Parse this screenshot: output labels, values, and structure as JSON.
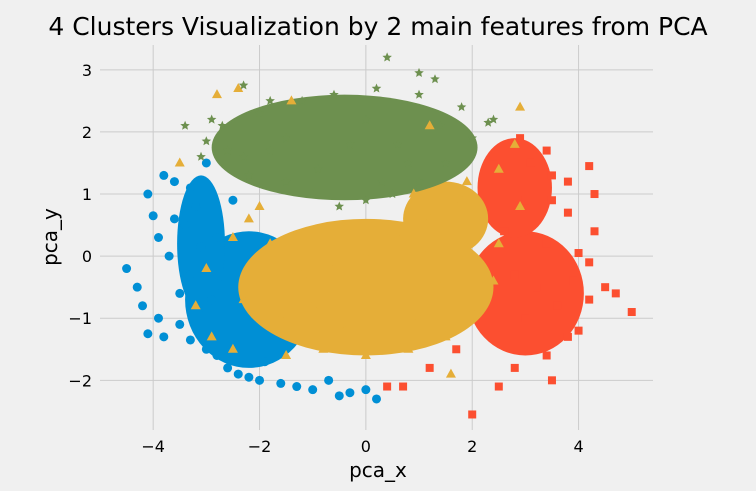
{
  "chart_data": {
    "type": "scatter",
    "title": "4 Clusters Visualization by 2 main features from PCA",
    "xlabel": "pca_x",
    "ylabel": "pca_y",
    "xlim": [
      -5,
      5.4
    ],
    "ylim": [
      -2.8,
      3.4
    ],
    "xticks": [
      -4,
      -2,
      0,
      2,
      4
    ],
    "yticks": [
      -2,
      -1,
      0,
      1,
      2,
      3
    ],
    "grid": true,
    "background": "#f0f0f0",
    "series": [
      {
        "color": "#008fd5",
        "marker": "circle",
        "points": [
          [
            -4.5,
            -0.2
          ],
          [
            -4.3,
            -0.5
          ],
          [
            -4.2,
            -0.8
          ],
          [
            -4.1,
            -1.25
          ],
          [
            -3.9,
            -1.0
          ],
          [
            -4.1,
            1.0
          ],
          [
            -4.0,
            0.65
          ],
          [
            -3.8,
            1.3
          ],
          [
            -3.6,
            0.6
          ],
          [
            -3.6,
            1.2
          ],
          [
            -3.5,
            -1.1
          ],
          [
            -3.4,
            0.5
          ],
          [
            -3.3,
            -0.3
          ],
          [
            -3.3,
            -1.35
          ],
          [
            -3.2,
            0.8
          ],
          [
            -3.1,
            0.15
          ],
          [
            -3.0,
            -1.5
          ],
          [
            -3.0,
            1.5
          ],
          [
            -2.9,
            -0.7
          ],
          [
            -2.8,
            0.3
          ],
          [
            -2.8,
            -1.6
          ],
          [
            -2.6,
            -1.8
          ],
          [
            -2.5,
            0.9
          ],
          [
            -2.4,
            -1.9
          ],
          [
            -2.2,
            -1.95
          ],
          [
            -2.0,
            -2.0
          ],
          [
            -1.9,
            -1.7
          ],
          [
            -1.6,
            -2.05
          ],
          [
            -1.3,
            -2.1
          ],
          [
            -1.0,
            -2.15
          ],
          [
            -0.7,
            -2.0
          ],
          [
            -0.5,
            -2.25
          ],
          [
            -0.3,
            -2.2
          ],
          [
            0.0,
            -2.15
          ],
          [
            0.2,
            -2.3
          ],
          [
            -3.8,
            -1.3
          ],
          [
            -3.7,
            0.0
          ],
          [
            -3.9,
            0.3
          ],
          [
            -3.5,
            -0.6
          ],
          [
            -3.3,
            1.1
          ]
        ]
      },
      {
        "color": "#fc4f30",
        "marker": "square",
        "points": [
          [
            2.0,
            -2.55
          ],
          [
            2.5,
            -2.1
          ],
          [
            2.8,
            -1.8
          ],
          [
            3.4,
            -1.6
          ],
          [
            3.5,
            -2.0
          ],
          [
            3.8,
            -1.3
          ],
          [
            4.0,
            -1.2
          ],
          [
            4.2,
            -0.7
          ],
          [
            4.3,
            0.4
          ],
          [
            4.5,
            -0.5
          ],
          [
            4.7,
            -0.6
          ],
          [
            5.0,
            -0.9
          ],
          [
            4.2,
            -0.1
          ],
          [
            4.0,
            0.05
          ],
          [
            3.5,
            0.9
          ],
          [
            3.8,
            1.2
          ],
          [
            4.2,
            1.45
          ],
          [
            4.3,
            1.0
          ],
          [
            3.8,
            0.7
          ],
          [
            3.4,
            1.7
          ],
          [
            2.9,
            1.9
          ],
          [
            3.1,
            1.5
          ],
          [
            2.4,
            1.6
          ],
          [
            2.8,
            -0.3
          ],
          [
            3.2,
            -0.5
          ],
          [
            3.6,
            -0.8
          ],
          [
            3.0,
            -1.0
          ],
          [
            1.7,
            -1.5
          ],
          [
            1.2,
            -1.8
          ],
          [
            0.7,
            -2.1
          ],
          [
            0.4,
            -2.1
          ],
          [
            3.4,
            0.2
          ],
          [
            2.6,
            0.4
          ],
          [
            3.9,
            -0.4
          ],
          [
            3.0,
            0.9
          ],
          [
            3.5,
            1.3
          ]
        ]
      },
      {
        "color": "#e5ae38",
        "marker": "triangle",
        "points": [
          [
            -2.8,
            2.6
          ],
          [
            -2.4,
            2.7
          ],
          [
            -3.5,
            1.5
          ],
          [
            2.9,
            2.4
          ],
          [
            1.2,
            2.1
          ],
          [
            -1.4,
            2.5
          ],
          [
            -2.0,
            0.8
          ],
          [
            -2.5,
            0.3
          ],
          [
            -3.0,
            -0.2
          ],
          [
            -3.2,
            -0.8
          ],
          [
            -2.9,
            -1.3
          ],
          [
            -2.5,
            -1.5
          ],
          [
            -1.5,
            -1.6
          ],
          [
            -0.8,
            -1.5
          ],
          [
            0.0,
            -1.6
          ],
          [
            0.8,
            -1.5
          ],
          [
            1.5,
            -1.3
          ],
          [
            2.0,
            -0.9
          ],
          [
            2.4,
            -0.4
          ],
          [
            2.5,
            0.2
          ],
          [
            2.2,
            0.6
          ],
          [
            1.8,
            0.9
          ],
          [
            1.2,
            0.6
          ],
          [
            0.6,
            0.3
          ],
          [
            0.0,
            0.0
          ],
          [
            -0.6,
            -0.2
          ],
          [
            -1.2,
            -0.3
          ],
          [
            -1.8,
            0.2
          ],
          [
            -2.2,
            0.6
          ],
          [
            -1.0,
            -0.8
          ],
          [
            0.4,
            -0.9
          ],
          [
            1.4,
            -0.5
          ],
          [
            -0.4,
            -1.2
          ],
          [
            1.0,
            -1.0
          ],
          [
            -1.6,
            -1.0
          ],
          [
            2.8,
            1.8
          ],
          [
            2.5,
            1.4
          ],
          [
            1.9,
            1.2
          ],
          [
            0.9,
            1.0
          ],
          [
            -2.3,
            -0.7
          ],
          [
            2.9,
            0.8
          ],
          [
            1.6,
            -1.9
          ],
          [
            0.5,
            0.4
          ]
        ]
      },
      {
        "color": "#6d904f",
        "marker": "star",
        "points": [
          [
            0.4,
            3.2
          ],
          [
            1.0,
            2.95
          ],
          [
            1.3,
            2.85
          ],
          [
            -2.3,
            2.75
          ],
          [
            -1.8,
            2.5
          ],
          [
            -3.4,
            2.1
          ],
          [
            -3.0,
            1.85
          ],
          [
            -2.6,
            1.7
          ],
          [
            -2.2,
            1.3
          ],
          [
            -1.5,
            1.2
          ],
          [
            -1.0,
            1.0
          ],
          [
            -0.5,
            0.8
          ],
          [
            0.0,
            0.9
          ],
          [
            0.5,
            1.0
          ],
          [
            1.0,
            1.2
          ],
          [
            1.5,
            1.5
          ],
          [
            2.0,
            1.9
          ],
          [
            2.3,
            2.15
          ],
          [
            1.8,
            2.4
          ],
          [
            1.0,
            2.6
          ],
          [
            0.2,
            2.7
          ],
          [
            -0.6,
            2.6
          ],
          [
            -1.2,
            2.5
          ],
          [
            -2.0,
            2.3
          ],
          [
            -2.7,
            2.1
          ],
          [
            -3.1,
            1.6
          ],
          [
            -0.3,
            1.8
          ],
          [
            0.6,
            1.8
          ],
          [
            -1.5,
            1.9
          ],
          [
            1.4,
            2.1
          ],
          [
            -2.3,
            1.6
          ],
          [
            0.0,
            2.2
          ],
          [
            -0.9,
            1.4
          ],
          [
            0.8,
            1.5
          ],
          [
            -1.8,
            1.7
          ],
          [
            2.4,
            2.2
          ],
          [
            -2.9,
            2.2
          ],
          [
            0.3,
            1.2
          ]
        ]
      }
    ]
  }
}
